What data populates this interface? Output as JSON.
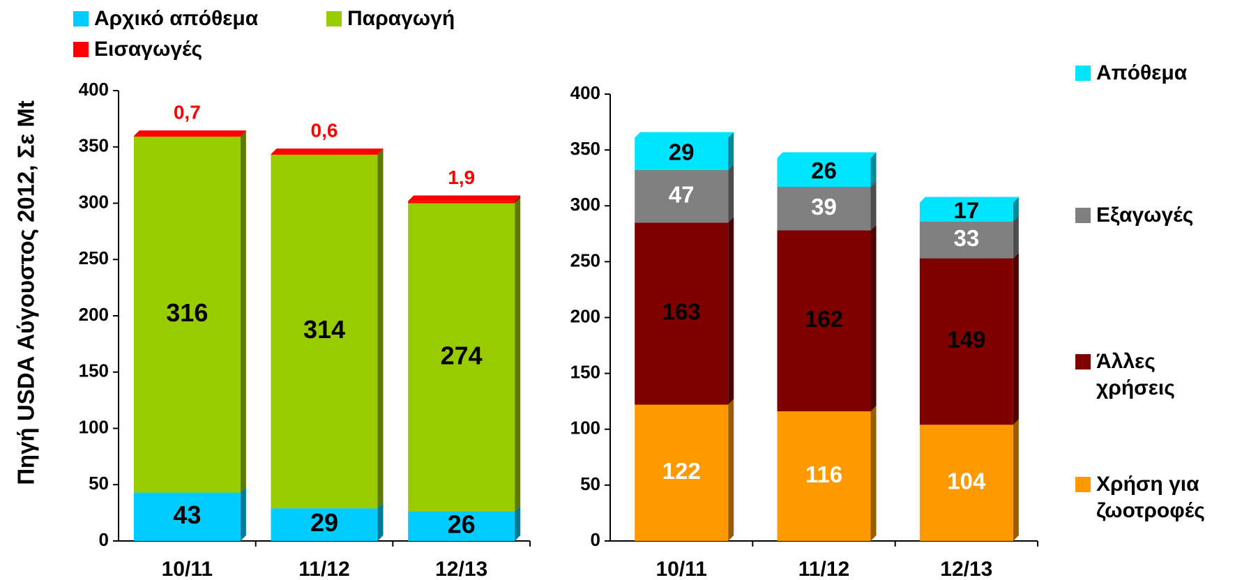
{
  "chart_data": [
    {
      "type": "bar",
      "stacked": true,
      "ylabel": "Πηγή USDA Αύγουστος 2012, Σε Mt",
      "categories": [
        "10/11",
        "11/12",
        "12/13"
      ],
      "ylim": [
        0,
        400
      ],
      "yticks": [
        0,
        50,
        100,
        150,
        200,
        250,
        300,
        350,
        400
      ],
      "legend": "top-left",
      "series": [
        {
          "name": "Αρχικό απόθεμα",
          "color": "#00ccff",
          "label_color": "#000000",
          "values": [
            43,
            29,
            26
          ]
        },
        {
          "name": "Παραγωγή",
          "color": "#99cc00",
          "label_color": "#000000",
          "values": [
            316,
            314,
            274
          ]
        },
        {
          "name": "Εισαγωγές",
          "color": "#ff0000",
          "label_color": "#ff0000",
          "label_position": "above",
          "values": [
            0.7,
            0.6,
            1.9
          ],
          "value_labels": [
            "0,7",
            "0,6",
            "1,9"
          ]
        }
      ]
    },
    {
      "type": "bar",
      "stacked": true,
      "categories": [
        "10/11",
        "11/12",
        "12/13"
      ],
      "ylim": [
        0,
        400
      ],
      "yticks": [
        0,
        50,
        100,
        150,
        200,
        250,
        300,
        350,
        400
      ],
      "legend": "right",
      "series": [
        {
          "name": "Χρήση για ζωοτροφές",
          "color": "#ff9900",
          "label_color": "#ffffff",
          "values": [
            122,
            116,
            104
          ]
        },
        {
          "name": "Άλλες χρήσεις",
          "color": "#800000",
          "label_color": "#000000",
          "values": [
            163,
            162,
            149
          ]
        },
        {
          "name": "Εξαγωγές",
          "color": "#808080",
          "label_color": "#ffffff",
          "values": [
            47,
            39,
            33
          ]
        },
        {
          "name": "Απόθεμα",
          "color": "#00e5ff",
          "label_color": "#000000",
          "values": [
            29,
            26,
            17
          ]
        }
      ]
    }
  ]
}
